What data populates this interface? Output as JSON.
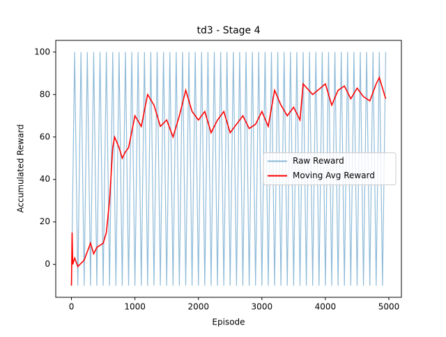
{
  "chart_data": {
    "type": "line",
    "title": "td3 - Stage 4",
    "x_label": "Episode",
    "y_label": "Accumulated Reward",
    "xlim": [
      -247.5,
      5197.5
    ],
    "ylim": [
      -15.5,
      105.5
    ],
    "xticks": [
      0,
      1000,
      2000,
      3000,
      4000,
      5000
    ],
    "yticks": [
      0,
      20,
      40,
      60,
      80,
      100
    ],
    "legend": "center right",
    "series": [
      {
        "name": "Raw Reward",
        "color": "#1f77b4",
        "opacity": 0.5,
        "x": [
          0,
          50,
          100,
          150,
          200,
          250,
          300,
          350,
          400,
          450,
          500,
          550,
          600,
          650,
          700,
          750,
          800,
          850,
          900,
          950,
          1000,
          1050,
          1100,
          1150,
          1200,
          1250,
          1300,
          1350,
          1400,
          1450,
          1500,
          1550,
          1600,
          1650,
          1700,
          1750,
          1800,
          1850,
          1900,
          1950,
          2000,
          2050,
          2100,
          2150,
          2200,
          2250,
          2300,
          2350,
          2400,
          2450,
          2500,
          2550,
          2600,
          2650,
          2700,
          2750,
          2800,
          2850,
          2900,
          2950,
          3000,
          3050,
          3100,
          3150,
          3200,
          3250,
          3300,
          3350,
          3400,
          3450,
          3500,
          3550,
          3600,
          3650,
          3700,
          3750,
          3800,
          3850,
          3900,
          3950,
          4000,
          4050,
          4100,
          4150,
          4200,
          4250,
          4300,
          4350,
          4400,
          4450,
          4500,
          4550,
          4600,
          4650,
          4700,
          4750,
          4800,
          4850,
          4900,
          4950
        ],
        "values": [
          -10,
          100,
          -10,
          100,
          -10,
          100,
          -10,
          100,
          -10,
          100,
          -10,
          100,
          -10,
          100,
          -10,
          100,
          -10,
          100,
          -10,
          100,
          -10,
          100,
          -10,
          100,
          -10,
          100,
          -10,
          100,
          -10,
          100,
          -10,
          100,
          -10,
          100,
          -10,
          100,
          -10,
          100,
          -10,
          100,
          -10,
          100,
          -10,
          100,
          -10,
          100,
          -10,
          100,
          -10,
          100,
          -10,
          100,
          -10,
          100,
          -10,
          100,
          -10,
          100,
          -10,
          100,
          -10,
          100,
          -10,
          100,
          -10,
          100,
          -10,
          100,
          -10,
          100,
          -10,
          100,
          -10,
          100,
          -10,
          100,
          -10,
          100,
          -10,
          100,
          -10,
          100,
          -10,
          100,
          -10,
          100,
          -10,
          100,
          -10,
          100,
          -10,
          100,
          -10,
          100,
          -10,
          100,
          -10,
          100,
          -10,
          100
        ]
      },
      {
        "name": "Moving Avg Reward",
        "color": "#ff0000",
        "x": [
          0,
          10,
          20,
          50,
          100,
          200,
          300,
          350,
          400,
          500,
          550,
          600,
          650,
          680,
          750,
          800,
          850,
          900,
          1000,
          1100,
          1200,
          1300,
          1400,
          1500,
          1600,
          1700,
          1800,
          1900,
          2000,
          2100,
          2200,
          2300,
          2400,
          2500,
          2600,
          2700,
          2800,
          2900,
          3000,
          3100,
          3200,
          3300,
          3400,
          3500,
          3600,
          3650,
          3800,
          4000,
          4100,
          4200,
          4300,
          4400,
          4500,
          4600,
          4700,
          4800,
          4850,
          4900,
          4950
        ],
        "values": [
          -10,
          15,
          0,
          3,
          -1,
          2,
          10,
          5,
          8,
          10,
          15,
          30,
          55,
          60,
          55,
          50,
          53,
          55,
          70,
          65,
          80,
          75,
          65,
          68,
          60,
          70,
          82,
          72,
          68,
          72,
          62,
          68,
          72,
          62,
          66,
          70,
          64,
          66,
          72,
          65,
          82,
          75,
          70,
          74,
          68,
          85,
          80,
          85,
          75,
          82,
          84,
          78,
          83,
          79,
          77,
          85,
          88,
          83,
          78
        ]
      }
    ]
  }
}
